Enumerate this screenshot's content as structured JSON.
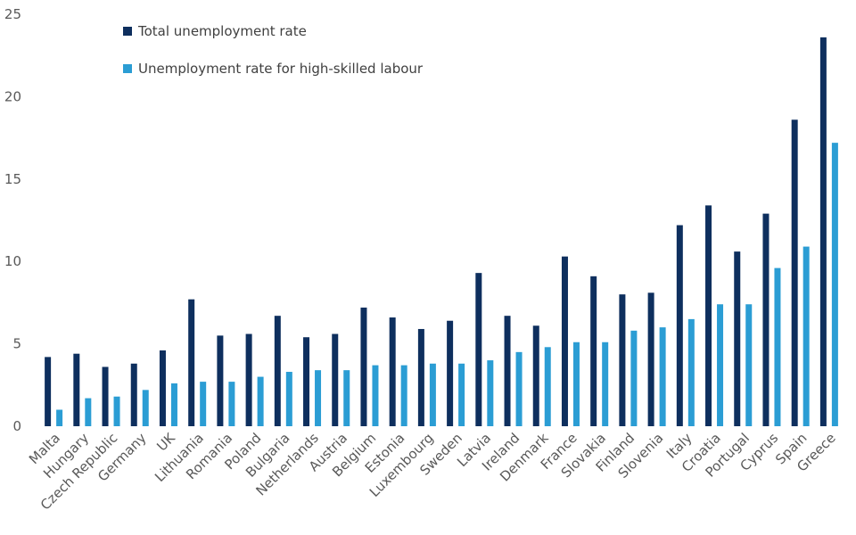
{
  "chart_data": {
    "type": "bar",
    "title": "",
    "xlabel": "",
    "ylabel": "",
    "ylim": [
      0,
      25
    ],
    "yticks": [
      0,
      5,
      10,
      15,
      20,
      25
    ],
    "grid": false,
    "legend_position": "top-left",
    "categories": [
      "Malta",
      "Hungary",
      "Czech Republic",
      "Germany",
      "UK",
      "Lithuania",
      "Romania",
      "Poland",
      "Bulgaria",
      "Netherlands",
      "Austria",
      "Belgium",
      "Estonia",
      "Luxembourg",
      "Sweden",
      "Latvia",
      "Ireland",
      "Denmark",
      "France",
      "Slovakia",
      "Finland",
      "Slovenia",
      "Italy",
      "Croatia",
      "Portugal",
      "Cyprus",
      "Spain",
      "Greece"
    ],
    "series": [
      {
        "name": "Total unemployment rate",
        "color": "#0e2f5e",
        "values": [
          4.2,
          4.4,
          3.6,
          3.8,
          4.6,
          7.7,
          5.5,
          5.6,
          6.7,
          5.4,
          5.6,
          7.2,
          6.6,
          5.9,
          6.4,
          9.3,
          6.7,
          6.1,
          10.3,
          9.1,
          8.0,
          8.1,
          12.2,
          13.4,
          10.6,
          12.9,
          18.6,
          23.6
        ]
      },
      {
        "name": "Unemployment rate for high-skilled labour",
        "color": "#2b9dd4",
        "values": [
          1.0,
          1.7,
          1.8,
          2.2,
          2.6,
          2.7,
          2.7,
          3.0,
          3.3,
          3.4,
          3.4,
          3.7,
          3.7,
          3.8,
          3.8,
          4.0,
          4.5,
          4.8,
          5.1,
          5.1,
          5.8,
          6.0,
          6.5,
          7.4,
          7.4,
          9.6,
          10.9,
          17.2
        ]
      }
    ]
  }
}
